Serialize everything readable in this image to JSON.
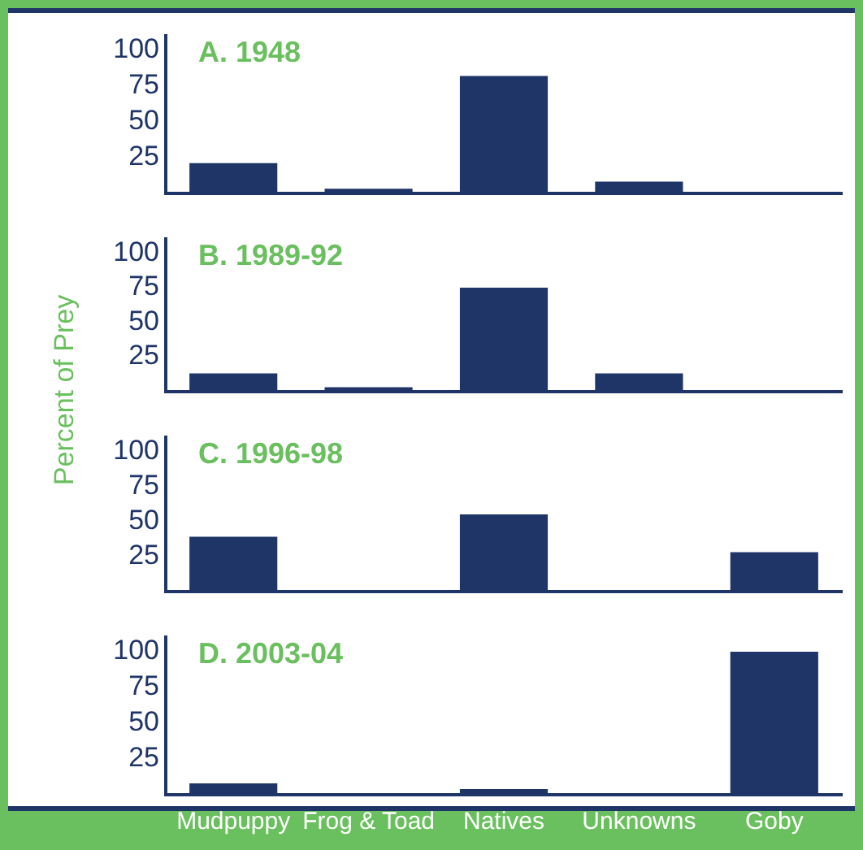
{
  "chart_data": [
    {
      "type": "bar",
      "title": "A. 1948",
      "categories": [
        null,
        null,
        null,
        null,
        null
      ],
      "values": [
        21,
        3,
        82,
        8,
        0
      ],
      "color": "#1f3568",
      "ylim": [
        0,
        110
      ],
      "yticks": [
        25,
        50,
        75,
        100
      ],
      "tick_labels": "y"
    },
    {
      "type": "bar",
      "title": "B. 1989-92",
      "ylabel": "Percent of Prey",
      "categories": [
        null,
        null,
        null,
        null,
        null
      ],
      "values": [
        13,
        3,
        75,
        13,
        0
      ],
      "color": "#1f3568",
      "ylim": [
        0,
        110
      ],
      "yticks": [
        25,
        50,
        75,
        100
      ],
      "tick_labels": "y"
    },
    {
      "type": "bar",
      "title": "C. 1996-98",
      "categories": [
        null,
        null,
        null,
        null,
        null
      ],
      "values": [
        39,
        0,
        55,
        0,
        28
      ],
      "color": "#1f3568",
      "ylim": [
        0,
        110
      ],
      "yticks": [
        25,
        50,
        75,
        100
      ],
      "tick_labels": "y"
    },
    {
      "type": "bar",
      "title": "D. 2003-04",
      "categories": [
        "Mudpuppy",
        "Frog & Toad",
        "Natives",
        "Unknowns",
        "Goby"
      ],
      "values": [
        8,
        0,
        4,
        0,
        100
      ],
      "color": "#1f3568",
      "ylim": [
        0,
        110
      ],
      "yticks": [
        25,
        50,
        75,
        100
      ]
    }
  ]
}
